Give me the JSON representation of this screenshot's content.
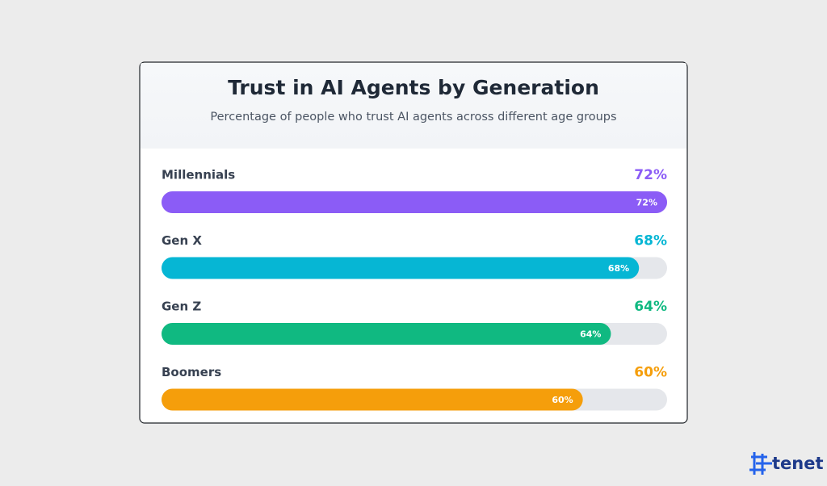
{
  "chart_data": {
    "type": "bar",
    "orientation": "horizontal",
    "title": "Trust in AI Agents by Generation",
    "subtitle": "Percentage of people who trust AI agents across different age groups",
    "categories": [
      "Millennials",
      "Gen X",
      "Gen Z",
      "Boomers"
    ],
    "values": [
      72,
      68,
      64,
      60
    ],
    "value_labels": [
      "72%",
      "68%",
      "64%",
      "60%"
    ],
    "colors": [
      "#8b5cf6",
      "#06b6d4",
      "#10b981",
      "#f59e0b"
    ],
    "xlim": [
      0,
      72
    ]
  },
  "brand": "tenet"
}
